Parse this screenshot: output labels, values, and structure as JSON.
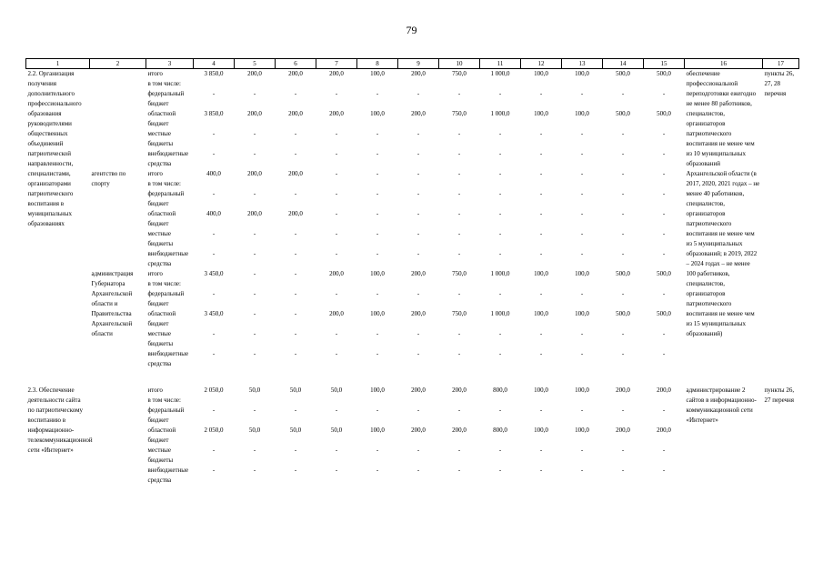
{
  "page_number": "79",
  "table": {
    "col_headers": [
      "1",
      "2",
      "3",
      "4",
      "5",
      "6",
      "7",
      "8",
      "9",
      "10",
      "11",
      "12",
      "13",
      "14",
      "15",
      "16",
      "17"
    ],
    "sections": [
      {
        "activity": "2.2. Организация получения дополнительного профессионального образования руководителями общественных объединений патриотической направленности, специалистами, организаторами патриотического воспитания в муниципальных образованиях",
        "result": "обеспечение профессиональной переподготовки ежегодно не менее 80 работников, специалистов, организаторов патриотического воспитания не менее чем из 10 муниципальных образований Архангельской области (в 2017, 2020, 2021 годах – не менее 40 работников, специалистов, организаторов патриотического воспитания не менее чем из 5 муниципальных образований; в 2019, 2022 – 2024 годах – не менее 100 работников, специалистов, организаторов патриотического воспитания не менее чем из 15 муниципальных образований)",
        "ref": "пункты 26, 27, 28 перечня",
        "blocks": [
          {
            "executor": "",
            "rows": [
              {
                "label": "итого",
                "values": [
                  "3 850,0",
                  "200,0",
                  "200,0",
                  "200,0",
                  "100,0",
                  "200,0",
                  "750,0",
                  "1 000,0",
                  "100,0",
                  "100,0",
                  "500,0",
                  "500,0"
                ]
              },
              {
                "label": "в том числе:",
                "values": []
              },
              {
                "label": "федеральный бюджет",
                "values": [
                  "-",
                  "-",
                  "-",
                  "-",
                  "-",
                  "-",
                  "-",
                  "-",
                  "-",
                  "-",
                  "-",
                  "-"
                ]
              },
              {
                "label": "областной бюджет",
                "values": [
                  "3 850,0",
                  "200,0",
                  "200,0",
                  "200,0",
                  "100,0",
                  "200,0",
                  "750,0",
                  "1 000,0",
                  "100,0",
                  "100,0",
                  "500,0",
                  "500,0"
                ]
              },
              {
                "label": "местные бюджеты",
                "values": [
                  "-",
                  "-",
                  "-",
                  "-",
                  "-",
                  "-",
                  "-",
                  "-",
                  "-",
                  "-",
                  "-",
                  "-"
                ]
              },
              {
                "label": "внебюджетные средства",
                "values": [
                  "-",
                  "-",
                  "-",
                  "-",
                  "-",
                  "-",
                  "-",
                  "-",
                  "-",
                  "-",
                  "-",
                  "-"
                ]
              }
            ]
          },
          {
            "executor": "агентство по спорту",
            "rows": [
              {
                "label": "итого",
                "values": [
                  "400,0",
                  "200,0",
                  "200,0",
                  "-",
                  "-",
                  "-",
                  "-",
                  "-",
                  "-",
                  "-",
                  "-",
                  "-"
                ]
              },
              {
                "label": "в том числе:",
                "values": []
              },
              {
                "label": "федеральный бюджет",
                "values": [
                  "-",
                  "-",
                  "-",
                  "-",
                  "-",
                  "-",
                  "-",
                  "-",
                  "-",
                  "-",
                  "-",
                  "-"
                ]
              },
              {
                "label": "областной бюджет",
                "values": [
                  "400,0",
                  "200,0",
                  "200,0",
                  "-",
                  "-",
                  "-",
                  "-",
                  "-",
                  "-",
                  "-",
                  "-",
                  "-"
                ]
              },
              {
                "label": "местные бюджеты",
                "values": [
                  "-",
                  "-",
                  "-",
                  "-",
                  "-",
                  "-",
                  "-",
                  "-",
                  "-",
                  "-",
                  "-",
                  "-"
                ]
              },
              {
                "label": "внебюджетные средства",
                "values": [
                  "-",
                  "-",
                  "-",
                  "-",
                  "-",
                  "-",
                  "-",
                  "-",
                  "-",
                  "-",
                  "-",
                  "-"
                ]
              }
            ]
          },
          {
            "executor": "администрация Губернатора Архангельской области и Правительства Архангельской области",
            "rows": [
              {
                "label": "итого",
                "values": [
                  "3 450,0",
                  "-",
                  "-",
                  "200,0",
                  "100,0",
                  "200,0",
                  "750,0",
                  "1 000,0",
                  "100,0",
                  "100,0",
                  "500,0",
                  "500,0"
                ]
              },
              {
                "label": "в том числе:",
                "values": []
              },
              {
                "label": "федеральный бюджет",
                "values": [
                  "-",
                  "-",
                  "-",
                  "-",
                  "-",
                  "-",
                  "-",
                  "-",
                  "-",
                  "-",
                  "-",
                  "-"
                ]
              },
              {
                "label": "областной бюджет",
                "values": [
                  "3 450,0",
                  "-",
                  "-",
                  "200,0",
                  "100,0",
                  "200,0",
                  "750,0",
                  "1 000,0",
                  "100,0",
                  "100,0",
                  "500,0",
                  "500,0"
                ]
              },
              {
                "label": "местные бюджеты",
                "values": [
                  "-",
                  "-",
                  "-",
                  "-",
                  "-",
                  "-",
                  "-",
                  "-",
                  "-",
                  "-",
                  "-",
                  "-"
                ]
              },
              {
                "label": "внебюджетные средства",
                "values": [
                  "-",
                  "-",
                  "-",
                  "-",
                  "-",
                  "-",
                  "-",
                  "-",
                  "-",
                  "-",
                  "-",
                  "-"
                ]
              }
            ]
          }
        ]
      },
      {
        "activity": "2.3. Обеспечение деятельности сайта по патриотическому воспитанию в информационно-телекоммуникационной сети «Интернет»",
        "result": "администрирование 2 сайтов в информационно-коммуникационной сети «Интернет»",
        "ref": "пункты 26, 27 перечня",
        "blocks": [
          {
            "executor": "",
            "rows": [
              {
                "label": "итого",
                "values": [
                  "2 050,0",
                  "50,0",
                  "50,0",
                  "50,0",
                  "100,0",
                  "200,0",
                  "200,0",
                  "800,0",
                  "100,0",
                  "100,0",
                  "200,0",
                  "200,0"
                ]
              },
              {
                "label": "в том числе:",
                "values": []
              },
              {
                "label": "федеральный бюджет",
                "values": [
                  "-",
                  "-",
                  "-",
                  "-",
                  "-",
                  "-",
                  "-",
                  "-",
                  "-",
                  "-",
                  "-",
                  "-"
                ]
              },
              {
                "label": "областной бюджет",
                "values": [
                  "2 050,0",
                  "50,0",
                  "50,0",
                  "50,0",
                  "100,0",
                  "200,0",
                  "200,0",
                  "800,0",
                  "100,0",
                  "100,0",
                  "200,0",
                  "200,0"
                ]
              },
              {
                "label": "местные бюджеты",
                "values": [
                  "-",
                  "-",
                  "-",
                  "-",
                  "-",
                  "-",
                  "-",
                  "-",
                  "-",
                  "-",
                  "-",
                  "-"
                ]
              },
              {
                "label": "внебюджетные средства",
                "values": [
                  "-",
                  "-",
                  "-",
                  "-",
                  "-",
                  "-",
                  "-",
                  "-",
                  "-",
                  "-",
                  "-",
                  "-"
                ]
              }
            ]
          }
        ]
      }
    ]
  }
}
